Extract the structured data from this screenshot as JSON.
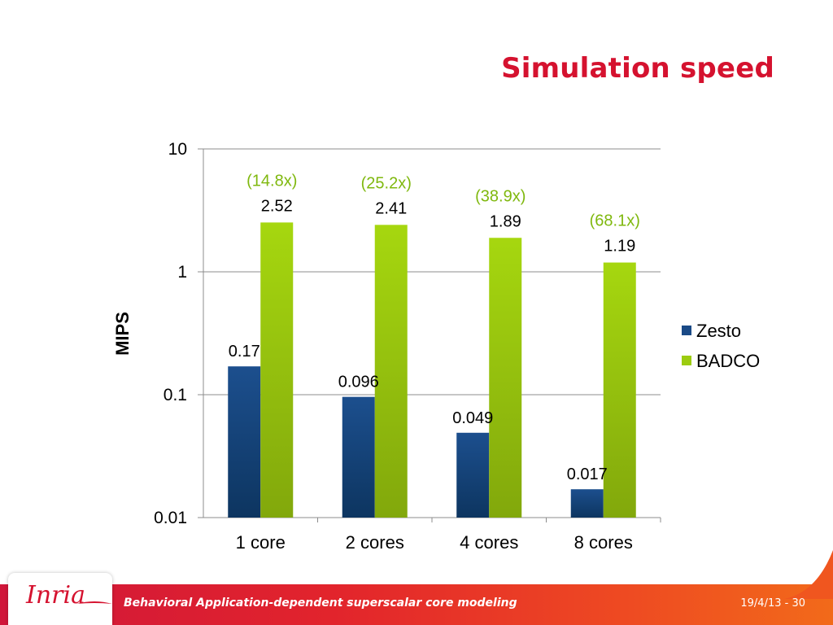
{
  "slide": {
    "title": "Simulation speed",
    "logo": "Inria",
    "footer_title": "Behavioral Application-dependent superscalar core modeling",
    "footer_page": "19/4/13 - 30"
  },
  "colors": {
    "title": "#d5122f",
    "zesto": "#1a4a86",
    "badco": "#9ccc10",
    "ratio": "#7fb80e",
    "footer": "#e2242c"
  },
  "chart_data": {
    "type": "bar",
    "ylabel": "MIPS",
    "xlabel": "",
    "yscale": "log",
    "ylim": [
      0.01,
      10
    ],
    "yticks": [
      "10",
      "1",
      "0.1",
      "0.01"
    ],
    "grid": true,
    "legend_position": "right",
    "categories": [
      "1 core",
      "2 cores",
      "4 cores",
      "8 cores"
    ],
    "series": [
      {
        "name": "Zesto",
        "values": [
          0.17,
          0.096,
          0.049,
          0.017
        ],
        "labels": [
          "0.17",
          "0.096",
          "0.049",
          "0.017"
        ]
      },
      {
        "name": "BADCO",
        "values": [
          2.52,
          2.41,
          1.89,
          1.19
        ],
        "labels": [
          "2.52",
          "2.41",
          "1.89",
          "1.19"
        ]
      }
    ],
    "annotations": [
      "(14.8x)",
      "(25.2x)",
      "(38.9x)",
      "(68.1x)"
    ]
  }
}
